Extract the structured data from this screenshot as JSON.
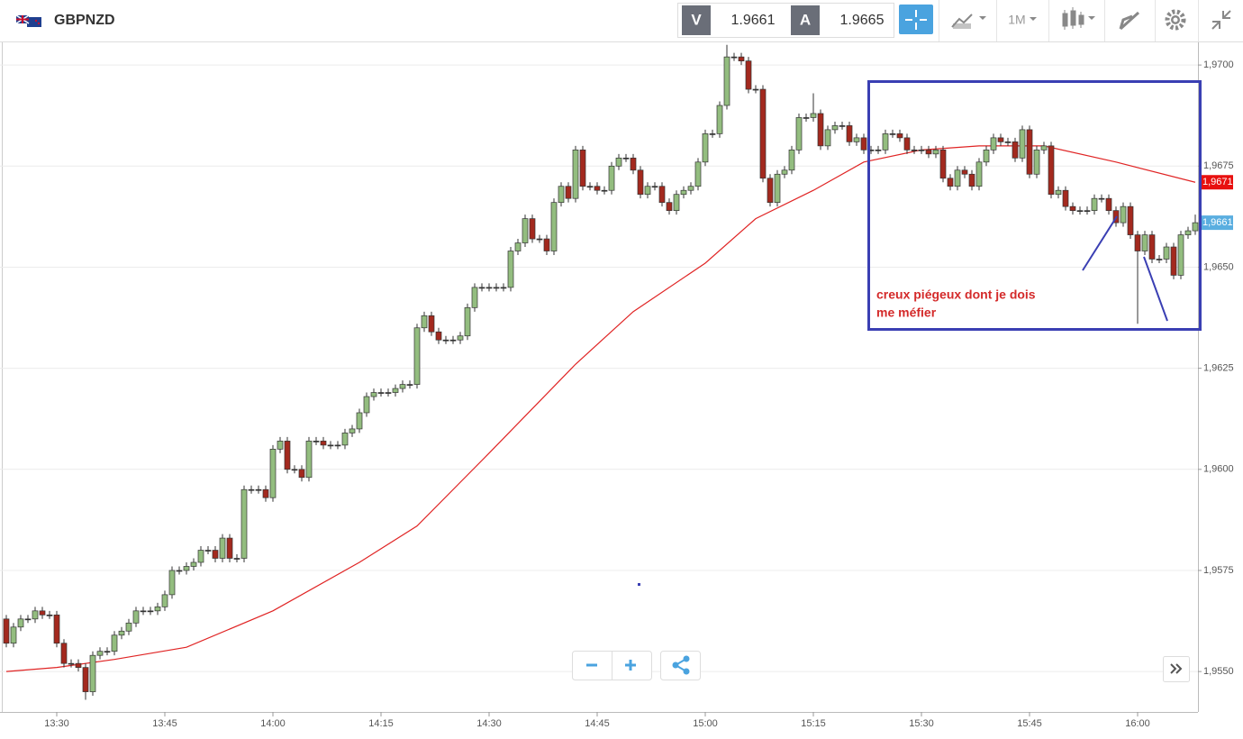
{
  "header": {
    "symbol": "GBPNZD",
    "sell_label": "V",
    "sell_price": "1.9661",
    "buy_label": "A",
    "buy_price": "1.9665",
    "timeframe": "1M"
  },
  "chart_data": {
    "type": "candlestick",
    "x": [
      "13:23",
      "13:24",
      "13:25",
      "13:26",
      "13:27",
      "13:28",
      "13:29",
      "13:30",
      "13:31",
      "13:32",
      "13:33",
      "13:34",
      "13:35",
      "13:36",
      "13:37",
      "13:38",
      "13:39",
      "13:40",
      "13:41",
      "13:42",
      "13:43",
      "13:44",
      "13:45",
      "13:46",
      "13:47",
      "13:48",
      "13:49",
      "13:50",
      "13:51",
      "13:52",
      "13:53",
      "13:54",
      "13:55",
      "13:56",
      "13:57",
      "13:58",
      "13:59",
      "14:00",
      "14:01",
      "14:02",
      "14:03",
      "14:04",
      "14:05",
      "14:06",
      "14:07",
      "14:08",
      "14:09",
      "14:10",
      "14:11",
      "14:12",
      "14:13",
      "14:14",
      "14:15",
      "14:16",
      "14:17",
      "14:18",
      "14:19",
      "14:20",
      "14:21",
      "14:22",
      "14:23",
      "14:24",
      "14:25",
      "14:26",
      "14:27",
      "14:28",
      "14:29",
      "14:30",
      "14:31",
      "14:32",
      "14:33",
      "14:34",
      "14:35",
      "14:36",
      "14:37",
      "14:38",
      "14:39",
      "14:40",
      "14:41",
      "14:42",
      "14:43",
      "14:44",
      "14:45",
      "14:46",
      "14:47",
      "14:48",
      "14:49",
      "14:50",
      "14:51",
      "14:52",
      "14:53",
      "14:54",
      "14:55",
      "14:56",
      "14:57",
      "14:58",
      "14:59",
      "15:00",
      "15:01",
      "15:02",
      "15:03",
      "15:04",
      "15:05",
      "15:06",
      "15:07",
      "15:08",
      "15:09",
      "15:10",
      "15:11",
      "15:12",
      "15:13",
      "15:14",
      "15:15",
      "15:16",
      "15:17",
      "15:18",
      "15:19",
      "15:20",
      "15:21",
      "15:22",
      "15:23",
      "15:24",
      "15:25",
      "15:26",
      "15:27",
      "15:28",
      "15:29",
      "15:30",
      "15:31",
      "15:32",
      "15:33",
      "15:34",
      "15:35",
      "15:36",
      "15:37",
      "15:38",
      "15:39",
      "15:40",
      "15:41",
      "15:42",
      "15:43",
      "15:44",
      "15:45",
      "15:46",
      "15:47",
      "15:48",
      "15:49",
      "15:50",
      "15:51",
      "15:52",
      "15:53",
      "15:54",
      "15:55",
      "15:56",
      "15:57",
      "15:58",
      "15:59",
      "16:00",
      "16:01",
      "16:02",
      "16:03",
      "16:04",
      "16:05",
      "16:06",
      "16:07",
      "16:08"
    ],
    "open": [
      1.9563,
      1.9557,
      1.9561,
      1.9563,
      1.9563,
      1.9565,
      1.9564,
      1.9564,
      1.9557,
      1.9552,
      1.9552,
      1.9551,
      1.9545,
      1.9554,
      1.9555,
      1.9555,
      1.9559,
      1.956,
      1.9562,
      1.9565,
      1.9565,
      1.9565,
      1.9566,
      1.9569,
      1.9575,
      1.9575,
      1.9576,
      1.9577,
      1.958,
      1.958,
      1.9578,
      1.9583,
      1.9578,
      1.9578,
      1.9595,
      1.9595,
      1.9595,
      1.9593,
      1.9605,
      1.9607,
      1.96,
      1.96,
      1.9598,
      1.9607,
      1.9607,
      1.9606,
      1.9606,
      1.9606,
      1.9609,
      1.961,
      1.9614,
      1.9618,
      1.9619,
      1.9619,
      1.9619,
      1.962,
      1.9621,
      1.9621,
      1.9635,
      1.9638,
      1.9634,
      1.9632,
      1.9632,
      1.9632,
      1.9633,
      1.964,
      1.9645,
      1.9645,
      1.9645,
      1.9645,
      1.9645,
      1.9654,
      1.9656,
      1.9662,
      1.9657,
      1.9657,
      1.9654,
      1.9666,
      1.967,
      1.9667,
      1.9679,
      1.967,
      1.967,
      1.9669,
      1.9669,
      1.9675,
      1.9677,
      1.9677,
      1.9674,
      1.9668,
      1.967,
      1.967,
      1.9666,
      1.9664,
      1.9668,
      1.9669,
      1.967,
      1.9676,
      1.9683,
      1.9683,
      1.969,
      1.9702,
      1.9702,
      1.9701,
      1.9694,
      1.9694,
      1.9672,
      1.9666,
      1.9673,
      1.9674,
      1.9679,
      1.9687,
      1.9687,
      1.9688,
      1.968,
      1.9684,
      1.9685,
      1.9685,
      1.9681,
      1.9682,
      1.9679,
      1.9679,
      1.9679,
      1.9683,
      1.9683,
      1.9682,
      1.9679,
      1.9679,
      1.9679,
      1.9678,
      1.9679,
      1.9672,
      1.967,
      1.9674,
      1.9673,
      1.967,
      1.9676,
      1.9679,
      1.9682,
      1.9681,
      1.9681,
      1.9677,
      1.9684,
      1.9673,
      1.9679,
      1.968,
      1.9668,
      1.9669,
      1.9665,
      1.9664,
      1.9664,
      1.9664,
      1.9667,
      1.9667,
      1.9664,
      1.9661,
      1.9665,
      1.9658,
      1.9654,
      1.9658,
      1.9652,
      1.9652,
      1.9655,
      1.9648,
      1.9658,
      1.9659
    ],
    "high": [
      1.9564,
      1.9562,
      1.9564,
      1.9564,
      1.9566,
      1.9566,
      1.9565,
      1.9565,
      1.9558,
      1.9553,
      1.9553,
      1.9552,
      1.9555,
      1.9556,
      1.9556,
      1.956,
      1.9561,
      1.9563,
      1.9566,
      1.9566,
      1.9566,
      1.9567,
      1.957,
      1.9576,
      1.9576,
      1.9577,
      1.9578,
      1.9581,
      1.9581,
      1.9581,
      1.9584,
      1.9584,
      1.9579,
      1.9596,
      1.9596,
      1.9596,
      1.9596,
      1.9606,
      1.9608,
      1.9608,
      1.9601,
      1.9601,
      1.9608,
      1.9608,
      1.9608,
      1.9607,
      1.9607,
      1.961,
      1.9611,
      1.9615,
      1.9619,
      1.962,
      1.962,
      1.962,
      1.9621,
      1.9622,
      1.9622,
      1.9636,
      1.9639,
      1.9639,
      1.9635,
      1.9633,
      1.9633,
      1.9634,
      1.9641,
      1.9646,
      1.9646,
      1.9646,
      1.9646,
      1.9646,
      1.9655,
      1.9657,
      1.9663,
      1.9663,
      1.9658,
      1.9658,
      1.9667,
      1.9671,
      1.9671,
      1.968,
      1.968,
      1.9671,
      1.9671,
      1.967,
      1.9676,
      1.9678,
      1.9678,
      1.9678,
      1.9675,
      1.9671,
      1.9671,
      1.9671,
      1.9667,
      1.9669,
      1.967,
      1.9671,
      1.9677,
      1.9684,
      1.9684,
      1.9691,
      1.9705,
      1.9703,
      1.9703,
      1.9702,
      1.9695,
      1.9695,
      1.9673,
      1.9674,
      1.9675,
      1.968,
      1.9688,
      1.9688,
      1.9693,
      1.9689,
      1.9685,
      1.9686,
      1.9686,
      1.9686,
      1.9683,
      1.9683,
      1.968,
      1.968,
      1.9684,
      1.9684,
      1.9684,
      1.9683,
      1.968,
      1.968,
      1.968,
      1.968,
      1.968,
      1.9673,
      1.9675,
      1.9675,
      1.9674,
      1.9677,
      1.968,
      1.9683,
      1.9683,
      1.9682,
      1.9682,
      1.9685,
      1.9685,
      1.968,
      1.9681,
      1.9681,
      1.967,
      1.967,
      1.9666,
      1.9665,
      1.9665,
      1.9668,
      1.9668,
      1.9668,
      1.9665,
      1.9666,
      1.9666,
      1.9659,
      1.9659,
      1.9659,
      1.9653,
      1.9656,
      1.9656,
      1.9659,
      1.966,
      1.9663
    ],
    "low": [
      1.9556,
      1.9556,
      1.956,
      1.9562,
      1.9562,
      1.9563,
      1.9563,
      1.9556,
      1.9551,
      1.9551,
      1.955,
      1.9543,
      1.9544,
      1.9553,
      1.9554,
      1.9554,
      1.9558,
      1.9559,
      1.9561,
      1.9564,
      1.9564,
      1.9564,
      1.9565,
      1.9568,
      1.9574,
      1.9574,
      1.9575,
      1.9576,
      1.9579,
      1.9577,
      1.9577,
      1.9577,
      1.9577,
      1.9577,
      1.9594,
      1.9594,
      1.9592,
      1.9592,
      1.9604,
      1.9599,
      1.9599,
      1.9597,
      1.9597,
      1.9606,
      1.9605,
      1.9605,
      1.9605,
      1.9605,
      1.9608,
      1.9609,
      1.9613,
      1.9617,
      1.9618,
      1.9618,
      1.9618,
      1.9619,
      1.962,
      1.962,
      1.9634,
      1.9633,
      1.9631,
      1.9631,
      1.9631,
      1.9631,
      1.9632,
      1.9639,
      1.9644,
      1.9644,
      1.9644,
      1.9644,
      1.9644,
      1.9653,
      1.9655,
      1.9656,
      1.9656,
      1.9653,
      1.9653,
      1.9665,
      1.9666,
      1.9666,
      1.9669,
      1.9669,
      1.9668,
      1.9668,
      1.9668,
      1.9674,
      1.9676,
      1.9673,
      1.9667,
      1.9667,
      1.9669,
      1.9665,
      1.9663,
      1.9663,
      1.9667,
      1.9668,
      1.9669,
      1.9675,
      1.9682,
      1.9682,
      1.9689,
      1.9701,
      1.97,
      1.9693,
      1.9693,
      1.9671,
      1.9665,
      1.9665,
      1.9672,
      1.9673,
      1.9678,
      1.9686,
      1.9686,
      1.9679,
      1.9679,
      1.9683,
      1.9684,
      1.968,
      1.968,
      1.9678,
      1.9678,
      1.9678,
      1.9678,
      1.9682,
      1.9681,
      1.9678,
      1.9678,
      1.9678,
      1.9677,
      1.9677,
      1.9671,
      1.9669,
      1.9669,
      1.9672,
      1.9669,
      1.9669,
      1.9675,
      1.9678,
      1.968,
      1.968,
      1.9676,
      1.9676,
      1.9672,
      1.9672,
      1.9678,
      1.9667,
      1.9667,
      1.9664,
      1.9663,
      1.9663,
      1.9663,
      1.9663,
      1.9666,
      1.9663,
      1.966,
      1.966,
      1.9657,
      1.9636,
      1.9653,
      1.9651,
      1.9651,
      1.9651,
      1.9647,
      1.9647,
      1.9657,
      1.9658
    ],
    "close": [
      1.9557,
      1.9561,
      1.9563,
      1.9563,
      1.9565,
      1.9564,
      1.9564,
      1.9557,
      1.9552,
      1.9552,
      1.9551,
      1.9545,
      1.9554,
      1.9555,
      1.9555,
      1.9559,
      1.956,
      1.9562,
      1.9565,
      1.9565,
      1.9565,
      1.9566,
      1.9569,
      1.9575,
      1.9575,
      1.9576,
      1.9577,
      1.958,
      1.958,
      1.9578,
      1.9583,
      1.9578,
      1.9578,
      1.9595,
      1.9595,
      1.9595,
      1.9593,
      1.9605,
      1.9607,
      1.96,
      1.96,
      1.9598,
      1.9607,
      1.9607,
      1.9606,
      1.9606,
      1.9606,
      1.9609,
      1.961,
      1.9614,
      1.9618,
      1.9619,
      1.9619,
      1.9619,
      1.962,
      1.9621,
      1.9621,
      1.9635,
      1.9638,
      1.9634,
      1.9632,
      1.9632,
      1.9632,
      1.9633,
      1.964,
      1.9645,
      1.9645,
      1.9645,
      1.9645,
      1.9645,
      1.9654,
      1.9656,
      1.9662,
      1.9657,
      1.9657,
      1.9654,
      1.9666,
      1.967,
      1.9667,
      1.9679,
      1.967,
      1.967,
      1.9669,
      1.9669,
      1.9675,
      1.9677,
      1.9677,
      1.9674,
      1.9668,
      1.967,
      1.967,
      1.9666,
      1.9664,
      1.9668,
      1.9669,
      1.967,
      1.9676,
      1.9683,
      1.9683,
      1.969,
      1.9702,
      1.9702,
      1.9701,
      1.9694,
      1.9694,
      1.9672,
      1.9666,
      1.9673,
      1.9674,
      1.9679,
      1.9687,
      1.9687,
      1.9688,
      1.968,
      1.9684,
      1.9685,
      1.9685,
      1.9681,
      1.9682,
      1.9679,
      1.9679,
      1.9679,
      1.9683,
      1.9683,
      1.9682,
      1.9679,
      1.9679,
      1.9679,
      1.9678,
      1.9679,
      1.9672,
      1.967,
      1.9674,
      1.9673,
      1.967,
      1.9676,
      1.9679,
      1.9682,
      1.9681,
      1.9681,
      1.9677,
      1.9684,
      1.9673,
      1.9679,
      1.968,
      1.9668,
      1.9669,
      1.9665,
      1.9664,
      1.9664,
      1.9664,
      1.9667,
      1.9667,
      1.9664,
      1.9661,
      1.9665,
      1.9658,
      1.9654,
      1.9658,
      1.9652,
      1.9652,
      1.9655,
      1.9648,
      1.9658,
      1.9659,
      1.9661
    ],
    "up_color": "#93bd7f",
    "down_color": "#a3291e",
    "moving_average": {
      "color": "#e02424",
      "x": [
        "13:23",
        "13:30",
        "13:38",
        "13:48",
        "14:00",
        "14:12",
        "14:20",
        "14:30",
        "14:42",
        "14:50",
        "15:00",
        "15:07",
        "15:15",
        "15:22",
        "15:30",
        "15:38",
        "15:47",
        "15:57",
        "16:08"
      ],
      "values": [
        1.955,
        1.9551,
        1.9553,
        1.9556,
        1.9565,
        1.9577,
        1.9586,
        1.9604,
        1.9626,
        1.9639,
        1.9651,
        1.9662,
        1.9669,
        1.9676,
        1.9679,
        1.968,
        1.968,
        1.9676,
        1.9671
      ]
    },
    "ylim": [
      1.954,
      1.97056
    ],
    "yticks": [
      {
        "value": 1.97,
        "label": "1,9700"
      },
      {
        "value": 1.9675,
        "label": "1,9675"
      },
      {
        "value": 1.965,
        "label": "1,9650"
      },
      {
        "value": 1.9625,
        "label": "1,9625"
      },
      {
        "value": 1.96,
        "label": "1,9600"
      },
      {
        "value": 1.9575,
        "label": "1,9575"
      },
      {
        "value": 1.955,
        "label": "1,9550"
      }
    ],
    "xticks": [
      "13:30",
      "13:45",
      "14:00",
      "14:15",
      "14:30",
      "14:45",
      "15:00",
      "15:15",
      "15:30",
      "15:45",
      "16:00"
    ],
    "grid": true,
    "price_markers": [
      {
        "value": 1.9671,
        "label": "1,9671",
        "color": "#e8100f"
      },
      {
        "value": 1.9661,
        "label": "1,9661",
        "color": "#5aaee0"
      }
    ],
    "annotation": [
      "creux piégeux dont je dois",
      "me méfier"
    ]
  }
}
